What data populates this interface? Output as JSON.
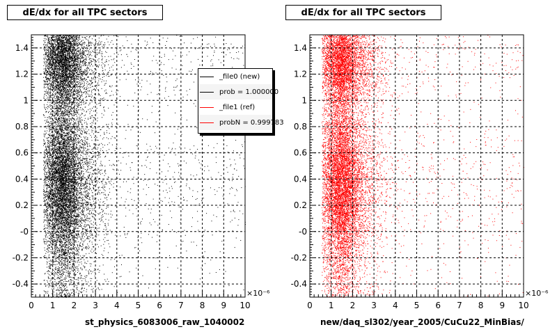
{
  "chart_data": [
    {
      "type": "scatter",
      "title": "dE/dx for all TPC sectors",
      "xlabel": "st_physics_6083006_raw_1040002",
      "x_exponent": "×10⁻⁶",
      "xlim": [
        0,
        10
      ],
      "ylim": [
        -0.5,
        1.5
      ],
      "xticks": [
        "0",
        "1",
        "2",
        "3",
        "4",
        "5",
        "6",
        "7",
        "8",
        "9",
        "10"
      ],
      "yticks": [
        "-0.4",
        "-0.2",
        "-0",
        "0.2",
        "0.4",
        "0.6",
        "0.8",
        "1",
        "1.2",
        "1.4"
      ],
      "grid": true,
      "color": "#000000",
      "series": [
        {
          "color": "#000000",
          "density_peak_x": 1.5,
          "bands_y": [
            0.35,
            1.3
          ]
        }
      ],
      "legend": {
        "placement": "top-right",
        "entries": [
          {
            "label": "_file0 (new)",
            "color": "#000000"
          },
          {
            "label": "prob = 1.000000",
            "color": "#000000"
          },
          {
            "label": "_file1 (ref)",
            "color": "#ff0000"
          },
          {
            "label": "probN = 0.999783",
            "color": "#ff0000"
          }
        ]
      }
    },
    {
      "type": "scatter",
      "title": "dE/dx for all TPC sectors",
      "xlabel": "new/daq_sl302/year_2005/CuCu22_MinBias/",
      "x_exponent": "×10⁻⁶",
      "xlim": [
        0,
        10
      ],
      "ylim": [
        -0.5,
        1.5
      ],
      "xticks": [
        "0",
        "1",
        "2",
        "3",
        "4",
        "5",
        "6",
        "7",
        "8",
        "9",
        "10"
      ],
      "yticks": [
        "-0.4",
        "-0.2",
        "-0",
        "0.2",
        "0.4",
        "0.6",
        "0.8",
        "1",
        "1.2",
        "1.4"
      ],
      "grid": true,
      "color": "#ff0000",
      "series": [
        {
          "color": "#ff0000",
          "density_peak_x": 1.5,
          "bands_y": [
            0.35,
            1.3
          ]
        }
      ]
    }
  ]
}
